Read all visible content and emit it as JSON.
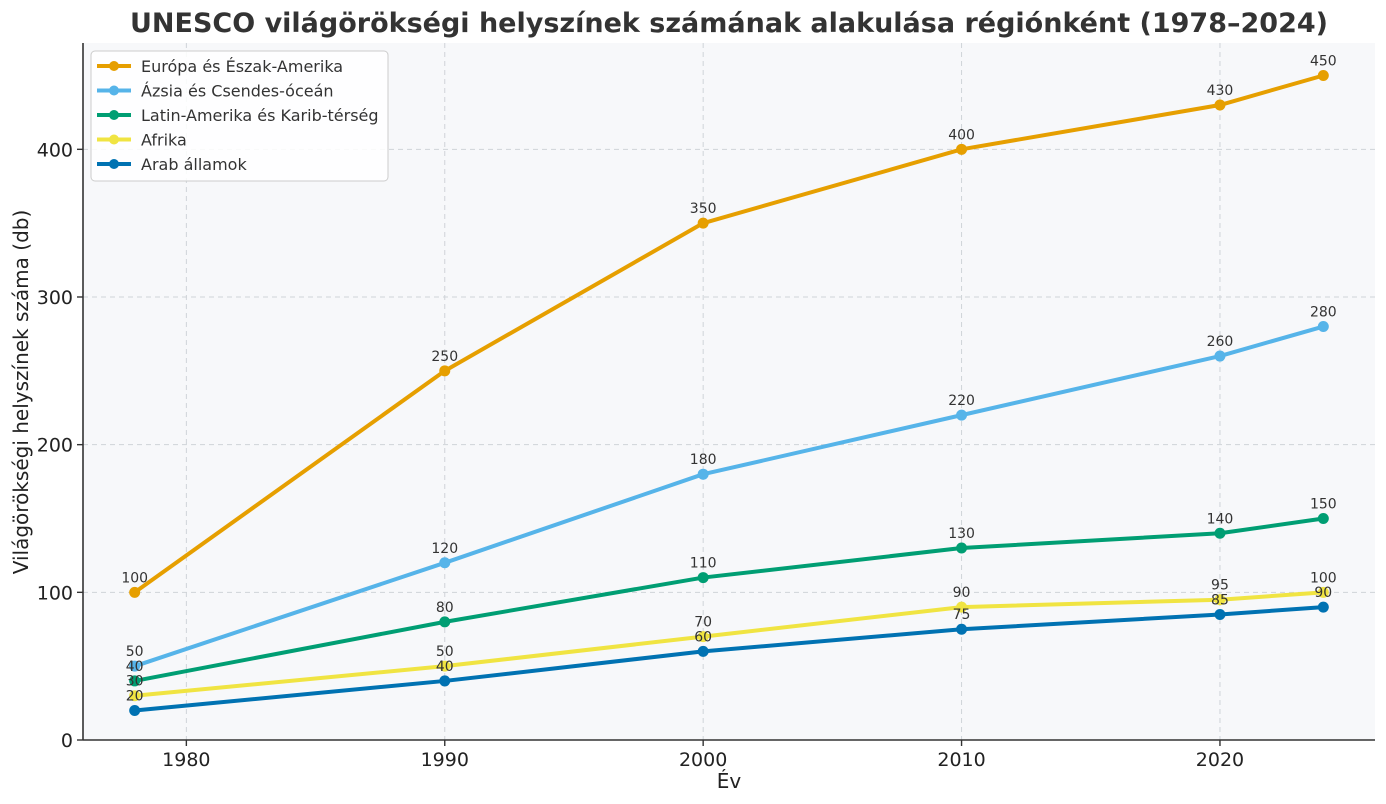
{
  "chart_data": {
    "type": "line",
    "title": "UNESCO világörökségi helyszínek számának alakulása régiónként (1978–2024)",
    "xlabel": "Év",
    "ylabel": "Világörökségi helyszínek száma (db)",
    "x": [
      1978,
      1990,
      2000,
      2010,
      2020,
      2024
    ],
    "xlim": [
      1976,
      2026
    ],
    "ylim": [
      0,
      472
    ],
    "xticks": [
      1980,
      1990,
      2000,
      2010,
      2020
    ],
    "yticks": [
      0,
      100,
      200,
      300,
      400
    ],
    "grid": true,
    "legend_position": "top-left",
    "series": [
      {
        "name": "Európa és Észak-Amerika",
        "color": "#E69F00",
        "values": [
          100,
          250,
          350,
          400,
          430,
          450
        ]
      },
      {
        "name": "Ázsia és Csendes-óceán",
        "color": "#56B4E9",
        "values": [
          50,
          120,
          180,
          220,
          260,
          280
        ]
      },
      {
        "name": "Latin-Amerika és Karib-térség",
        "color": "#009E73",
        "values": [
          40,
          80,
          110,
          130,
          140,
          150
        ]
      },
      {
        "name": "Afrika",
        "color": "#F0E442",
        "values": [
          30,
          50,
          70,
          90,
          95,
          100
        ]
      },
      {
        "name": "Arab államok",
        "color": "#0072B2",
        "values": [
          20,
          40,
          60,
          75,
          85,
          90
        ]
      }
    ]
  }
}
